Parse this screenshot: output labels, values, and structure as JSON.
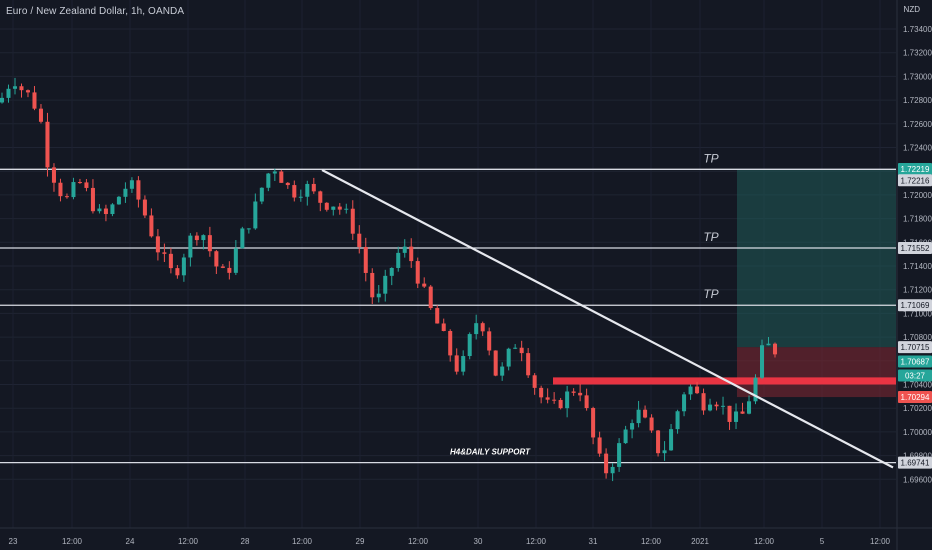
{
  "header": {
    "title": "Euro / New Zealand Dollar, 1h, OANDA",
    "currency": "NZD"
  },
  "chart_data": {
    "type": "candlestick",
    "symbol": "EUR/NZD",
    "timeframe": "1h",
    "ylim": [
      1.696,
      1.735
    ],
    "y_ticks": [
      "1.73400",
      "1.73200",
      "1.73000",
      "1.72800",
      "1.72600",
      "1.72400",
      "1.72200",
      "1.72000",
      "1.71800",
      "1.71600",
      "1.71400",
      "1.71200",
      "1.71000",
      "1.70800",
      "1.70600",
      "1.70400",
      "1.70200",
      "1.70000",
      "1.69800",
      "1.69600"
    ],
    "x_ticks": [
      "23",
      "12:00",
      "24",
      "12:00",
      "28",
      "12:00",
      "29",
      "12:00",
      "30",
      "12:00",
      "31",
      "12:00",
      "2021",
      "12:00",
      "5",
      "12:00"
    ],
    "price_tags": [
      {
        "label": "1.72219",
        "color": "#26a69a"
      },
      {
        "label": "1.72216",
        "color": "#d1d4dc"
      },
      {
        "label": "1.71552",
        "color": "#d1d4dc"
      },
      {
        "label": "1.71069",
        "color": "#d1d4dc"
      },
      {
        "label": "1.70715",
        "color": "#d1d4dc"
      },
      {
        "label": "1.70687",
        "color": "#26a69a"
      },
      {
        "label": "03:27",
        "color": "#26a69a"
      },
      {
        "label": "1.70294",
        "color": "#ef5350"
      },
      {
        "label": "1.69741",
        "color": "#d1d4dc"
      }
    ],
    "horizontal_levels": [
      {
        "price": 1.72216,
        "label": "TP"
      },
      {
        "price": 1.71552,
        "label": "TP"
      },
      {
        "price": 1.71069,
        "label": "TP"
      },
      {
        "price": 1.69741,
        "label": "H4&DAILY SUPPORT"
      }
    ],
    "support_zone": {
      "from": 1.704,
      "to": 1.7046,
      "color": "#f23645"
    },
    "trendline": {
      "start_price": 1.7221,
      "end_price": 1.697
    },
    "position": {
      "entry": 1.70715,
      "target": 1.72219,
      "stop": 1.70294
    },
    "candles": {
      "colors": {
        "up": "#26a69a",
        "down": "#ef5350"
      },
      "close_path": [
        1.7282,
        1.7293,
        1.7298,
        1.729,
        1.7285,
        1.7278,
        1.7266,
        1.7232,
        1.7218,
        1.7206,
        1.7194,
        1.7201,
        1.7212,
        1.7205,
        1.7196,
        1.7185,
        1.718,
        1.7186,
        1.7195,
        1.7204,
        1.7209,
        1.7203,
        1.719,
        1.7178,
        1.7162,
        1.715,
        1.714,
        1.7132,
        1.7142,
        1.7155,
        1.7165,
        1.717,
        1.7166,
        1.715,
        1.7138,
        1.7132,
        1.714,
        1.7154,
        1.7168,
        1.7178,
        1.719,
        1.7206,
        1.7218,
        1.7224,
        1.7216,
        1.7207,
        1.7203,
        1.7205,
        1.7207,
        1.7201,
        1.7196,
        1.7193,
        1.7194,
        1.719,
        1.7185,
        1.7178,
        1.7163,
        1.7145,
        1.712,
        1.7108,
        1.7118,
        1.7132,
        1.7146,
        1.7154,
        1.7152,
        1.714,
        1.7126,
        1.711,
        1.7098,
        1.7088,
        1.7075,
        1.7063,
        1.7052,
        1.706,
        1.7082,
        1.7095,
        1.709,
        1.707,
        1.7048,
        1.7052,
        1.7065,
        1.7075,
        1.7072,
        1.7055,
        1.704,
        1.703,
        1.7022,
        1.702,
        1.7025,
        1.703,
        1.7035,
        1.704,
        1.7022,
        1.7,
        1.698,
        1.6965,
        1.6972,
        1.6982,
        1.6995,
        1.7008,
        1.7018,
        1.7012,
        1.7002,
        1.699,
        1.6982,
        1.699,
        1.7008,
        1.7024,
        1.704,
        1.7036,
        1.7028,
        1.7024,
        1.7032,
        1.7026,
        1.7018,
        1.7012,
        1.701,
        1.7015,
        1.703,
        1.7045,
        1.7068,
        1.7072,
        1.7069
      ]
    }
  }
}
